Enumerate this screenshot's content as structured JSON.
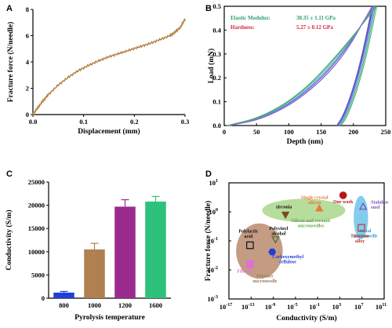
{
  "chart_data": [
    {
      "panel": "A",
      "type": "line",
      "xlabel": "Displacement (mm)",
      "ylabel": "Fracture force (N/needle)",
      "xlim": [
        0,
        0.3
      ],
      "ylim": [
        0,
        8
      ],
      "xticks": [
        "0.0",
        "0.1",
        "0.2",
        "0.3"
      ],
      "yticks": [
        "0",
        "2",
        "4",
        "6",
        "8"
      ],
      "line_color": "#b8864a",
      "x": [
        0,
        0.01,
        0.02,
        0.03,
        0.05,
        0.07,
        0.09,
        0.11,
        0.13,
        0.15,
        0.17,
        0.19,
        0.21,
        0.23,
        0.25,
        0.27,
        0.28,
        0.285,
        0.29,
        0.295,
        0.3
      ],
      "y": [
        0,
        0.55,
        1.05,
        1.5,
        2.25,
        2.85,
        3.35,
        3.75,
        4.1,
        4.4,
        4.65,
        4.9,
        5.15,
        5.4,
        5.7,
        6.0,
        6.25,
        6.45,
        6.6,
        6.9,
        7.3
      ]
    },
    {
      "panel": "B",
      "type": "line",
      "xlabel": "Depth (nm)",
      "ylabel": "Load (mN)",
      "xlim": [
        0,
        250
      ],
      "ylim": [
        0,
        0.5
      ],
      "xticks": [
        "0",
        "50",
        "100",
        "150",
        "200",
        "250"
      ],
      "yticks": [
        "0.0",
        "0.1",
        "0.2",
        "0.3",
        "0.4",
        "0.5"
      ],
      "annotations": [
        {
          "label": "Elastic Modulus:",
          "value": "38.35 ± 1.11 GPa",
          "color": "#2e9e6f"
        },
        {
          "label": "Hardness:",
          "value": "5.27 ± 0.12  GPa",
          "color": "#d8243a"
        }
      ],
      "series": [
        {
          "color": "#2b3aa8",
          "loading": [
            [
              8,
              0
            ],
            [
              60,
              0.03
            ],
            [
              120,
              0.12
            ],
            [
              180,
              0.28
            ],
            [
              230,
              0.5
            ]
          ],
          "unloading": [
            [
              230,
              0.5
            ],
            [
              215,
              0.3
            ],
            [
              200,
              0.15
            ],
            [
              185,
              0.04
            ],
            [
              175,
              0
            ]
          ]
        },
        {
          "color": "#4a8bd6",
          "loading": [
            [
              6,
              0
            ],
            [
              60,
              0.032
            ],
            [
              120,
              0.125
            ],
            [
              180,
              0.29
            ],
            [
              232,
              0.5
            ]
          ],
          "unloading": [
            [
              232,
              0.5
            ],
            [
              217,
              0.3
            ],
            [
              202,
              0.15
            ],
            [
              187,
              0.04
            ],
            [
              177,
              0
            ]
          ]
        },
        {
          "color": "#2aa7a0",
          "loading": [
            [
              5,
              0
            ],
            [
              58,
              0.033
            ],
            [
              118,
              0.128
            ],
            [
              178,
              0.295
            ],
            [
              234,
              0.5
            ]
          ],
          "unloading": [
            [
              234,
              0.5
            ],
            [
              219,
              0.3
            ],
            [
              204,
              0.15
            ],
            [
              189,
              0.04
            ],
            [
              179,
              0
            ]
          ]
        },
        {
          "color": "#7a5ad0",
          "loading": [
            [
              9,
              0
            ],
            [
              62,
              0.029
            ],
            [
              122,
              0.118
            ],
            [
              182,
              0.275
            ],
            [
              229,
              0.5
            ]
          ],
          "unloading": [
            [
              229,
              0.5
            ],
            [
              214,
              0.3
            ],
            [
              199,
              0.15
            ],
            [
              184,
              0.04
            ],
            [
              174,
              0
            ]
          ]
        },
        {
          "color": "#55b35a",
          "loading": [
            [
              4,
              0
            ],
            [
              57,
              0.034
            ],
            [
              117,
              0.13
            ],
            [
              177,
              0.3
            ],
            [
              236,
              0.5
            ]
          ],
          "unloading": [
            [
              236,
              0.5
            ],
            [
              221,
              0.3
            ],
            [
              206,
              0.15
            ],
            [
              191,
              0.04
            ],
            [
              181,
              0
            ]
          ]
        },
        {
          "color": "#8a78d8",
          "loading": [
            [
              7,
              0
            ],
            [
              61,
              0.031
            ],
            [
              121,
              0.122
            ],
            [
              181,
              0.285
            ],
            [
              231,
              0.5
            ]
          ],
          "unloading": [
            [
              231,
              0.5
            ],
            [
              216,
              0.3
            ],
            [
              201,
              0.15
            ],
            [
              186,
              0.04
            ],
            [
              176,
              0
            ]
          ]
        }
      ]
    },
    {
      "panel": "C",
      "type": "bar",
      "xlabel": "Pyrolysis temperature",
      "ylabel": "Conductivity (S/m)",
      "ylim": [
        0,
        25000
      ],
      "yticks": [
        "0",
        "5000",
        "10000",
        "15000",
        "20000",
        "25000"
      ],
      "categories": [
        "800",
        "1000",
        "1200",
        "1600"
      ],
      "values": [
        1200,
        10500,
        19700,
        20800
      ],
      "errors": [
        250,
        1300,
        1500,
        1100
      ],
      "colors": [
        "#1f3fd6",
        "#b08050",
        "#9b2a8f",
        "#2ec17c"
      ]
    },
    {
      "panel": "D",
      "type": "scatter",
      "xlabel": "Conductivity (S/m)",
      "ylabel": "Fracture force (N/needle)",
      "xscale": "log",
      "yscale": "log",
      "xlim_exp": [
        -17,
        11
      ],
      "ylim_exp": [
        -3,
        1
      ],
      "xticks": [
        {
          "base": "10",
          "exp": "-17"
        },
        {
          "base": "10",
          "exp": "-13"
        },
        {
          "base": "10",
          "exp": "-9"
        },
        {
          "base": "10",
          "exp": "-5"
        },
        {
          "base": "10",
          "exp": "-1"
        },
        {
          "base": "10",
          "exp": "3"
        },
        {
          "base": "10",
          "exp": "7"
        },
        {
          "base": "10",
          "exp": "11"
        }
      ],
      "yticks": [
        {
          "base": "10",
          "exp": "1"
        },
        {
          "base": "10",
          "exp": "0"
        },
        {
          "base": "10",
          "exp": "-1"
        },
        {
          "base": "10",
          "exp": "-2"
        },
        {
          "base": "10",
          "exp": "-3"
        }
      ],
      "regions": [
        {
          "label": "Polymer\nmicroneedle",
          "color": "#b07a5a",
          "cx_exp": -11.5,
          "cy_exp": -1.35,
          "rx_exp": 4.2,
          "ry_exp": 0.95
        },
        {
          "label": "Silicon and ceramic\nmicroneedles",
          "color": "#9ed27a",
          "cx_exp": -3.5,
          "cy_exp": 0.05,
          "rx_exp": 7.5,
          "ry_exp": 0.4
        },
        {
          "label": "Metal\nmicroneedle",
          "color": "#5bbbe8",
          "cx_exp": 6.8,
          "cy_exp": -0.2,
          "rx_exp": 1.3,
          "ry_exp": 0.75
        }
      ],
      "points": [
        {
          "label": "Our work",
          "x_exp": 3.6,
          "y_exp": 0.57,
          "marker": "circle",
          "color": "#b81414",
          "filled": true
        },
        {
          "label": "Single crystal\nsilicon",
          "x_exp": -0.7,
          "y_exp": 0.12,
          "marker": "triangle",
          "color": "#e87a3a",
          "filled": true
        },
        {
          "label": "zirconia",
          "x_exp": -6.8,
          "y_exp": -0.1,
          "marker": "triangle-down",
          "color": "#7a4a20",
          "filled": true
        },
        {
          "label": "Stainless\nsteel",
          "x_exp": 7.2,
          "y_exp": 0.18,
          "marker": "triangle",
          "color": "#7a4ab8",
          "filled": false
        },
        {
          "label": "Titanium\nalloy",
          "x_exp": 6.9,
          "y_exp": -0.55,
          "marker": "square",
          "color": "#c0392b",
          "filled": false
        },
        {
          "label": "Polylactic\nacid",
          "x_exp": -13.2,
          "y_exp": -1.15,
          "marker": "square",
          "color": "#111111",
          "filled": false
        },
        {
          "label": "Polyvinyl\nalcohol",
          "x_exp": -8.6,
          "y_exp": -0.95,
          "marker": "triangle-down",
          "color": "#4a6a30",
          "filled": false
        },
        {
          "label": "Carboxymethyl\ncellulose",
          "x_exp": -9.2,
          "y_exp": -1.38,
          "marker": "hexagon",
          "color": "#1f3fd6",
          "filled": true
        },
        {
          "label": "Fibroin",
          "x_exp": -13.2,
          "y_exp": -1.8,
          "marker": "square",
          "color": "#e070d8",
          "filled": true
        }
      ]
    }
  ]
}
